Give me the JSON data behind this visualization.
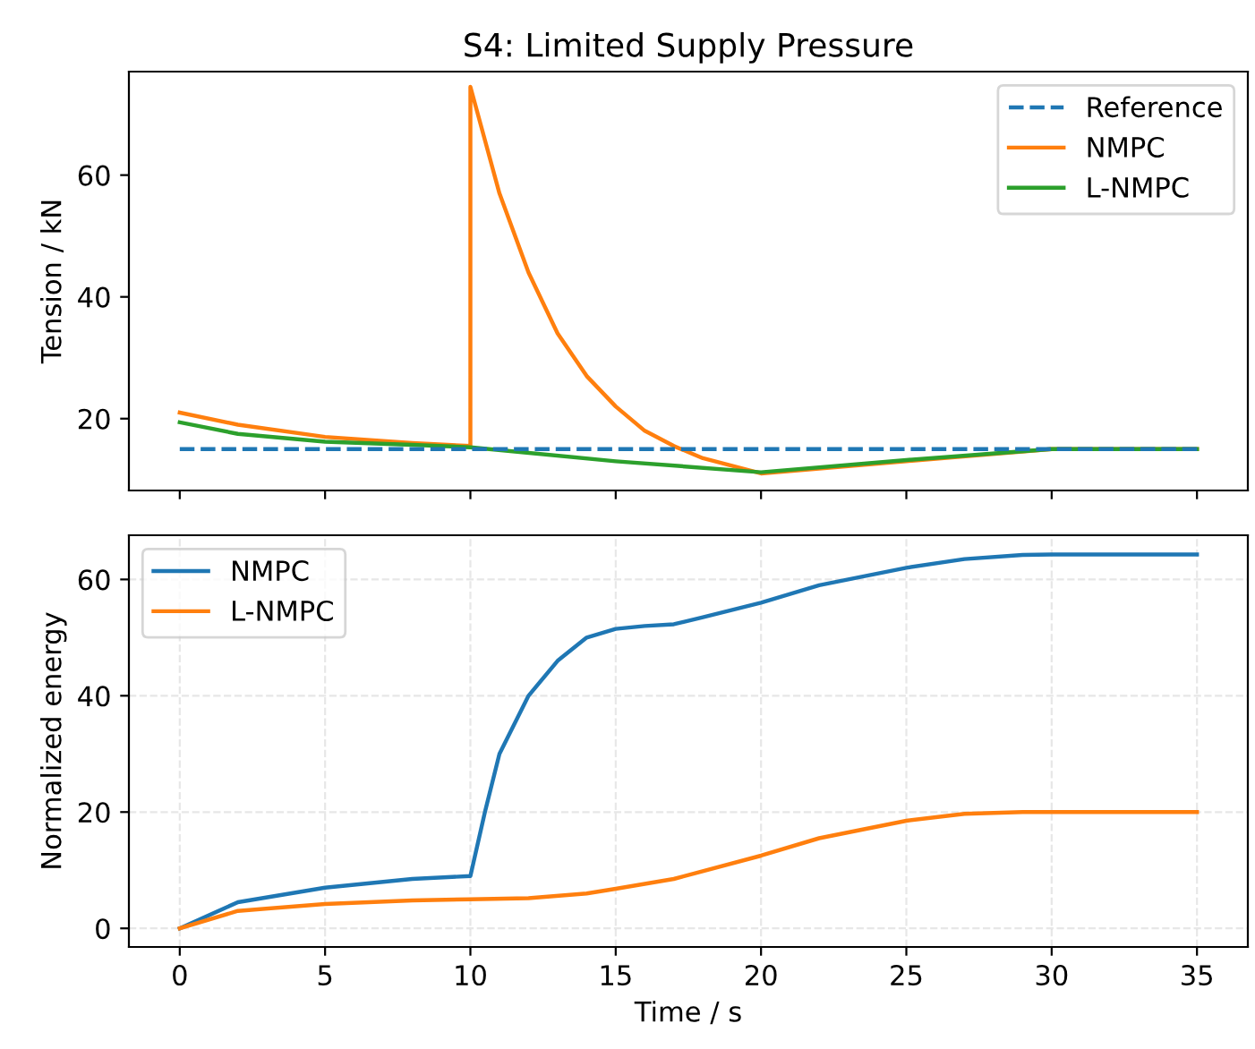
{
  "chart_data": [
    {
      "type": "line",
      "title": "S4: Limited Supply Pressure",
      "ylabel": "Tension / kN",
      "xlim": [
        -1.75,
        36.75
      ],
      "xticks": [
        0,
        5,
        10,
        15,
        20,
        25,
        30,
        35
      ],
      "ylim": [
        8.2,
        77
      ],
      "yticks": [
        20,
        40,
        60
      ],
      "tick_labels": "y",
      "grid": false,
      "legend": "top right",
      "series": [
        {
          "name": "Reference",
          "color": "#1f77b4",
          "line_style": "dashed",
          "x": [
            0,
            35
          ],
          "values": [
            15,
            15
          ]
        },
        {
          "name": "NMPC",
          "color": "#ff7f0e",
          "x": [
            0,
            2,
            5,
            8,
            10,
            10,
            11,
            12,
            13,
            14,
            15,
            16,
            17,
            18,
            20,
            25,
            30,
            35
          ],
          "values": [
            21,
            19,
            17,
            16,
            15.5,
            74.5,
            57,
            44,
            34,
            27,
            22,
            18,
            15.5,
            13.5,
            11,
            13,
            15,
            15
          ]
        },
        {
          "name": "L-NMPC",
          "color": "#2ca02c",
          "x": [
            0,
            2,
            5,
            8,
            10,
            15,
            20,
            25,
            30,
            35
          ],
          "values": [
            19.4,
            17.5,
            16.2,
            15.7,
            15.3,
            13,
            11.2,
            13.2,
            15,
            15
          ]
        }
      ]
    },
    {
      "type": "line",
      "xlabel": "Time / s",
      "ylabel": "Normalized energy",
      "xlim": [
        -1.75,
        36.75
      ],
      "xticks": [
        0,
        5,
        10,
        15,
        20,
        25,
        30,
        35
      ],
      "ylim": [
        -3.2,
        67.6
      ],
      "yticks": [
        0,
        20,
        40,
        60
      ],
      "grid": true,
      "legend": "top left",
      "series": [
        {
          "name": "NMPC",
          "color": "#1f77b4",
          "x": [
            0,
            2,
            5,
            8,
            10,
            10.5,
            11,
            12,
            13,
            14,
            15,
            16,
            17,
            18,
            20,
            22,
            25,
            27,
            29,
            30,
            35
          ],
          "values": [
            0,
            4.5,
            7,
            8.5,
            9,
            20,
            30,
            40,
            46,
            50,
            51.5,
            52,
            52.3,
            53.5,
            56,
            59,
            62,
            63.5,
            64.2,
            64.3,
            64.3
          ]
        },
        {
          "name": "L-NMPC",
          "color": "#ff7f0e",
          "x": [
            0,
            2,
            5,
            8,
            10,
            12,
            14,
            15,
            17,
            20,
            22,
            25,
            27,
            29,
            35
          ],
          "values": [
            0,
            3,
            4.2,
            4.8,
            5,
            5.2,
            6,
            6.8,
            8.5,
            12.5,
            15.5,
            18.5,
            19.7,
            20,
            20
          ]
        }
      ]
    }
  ]
}
